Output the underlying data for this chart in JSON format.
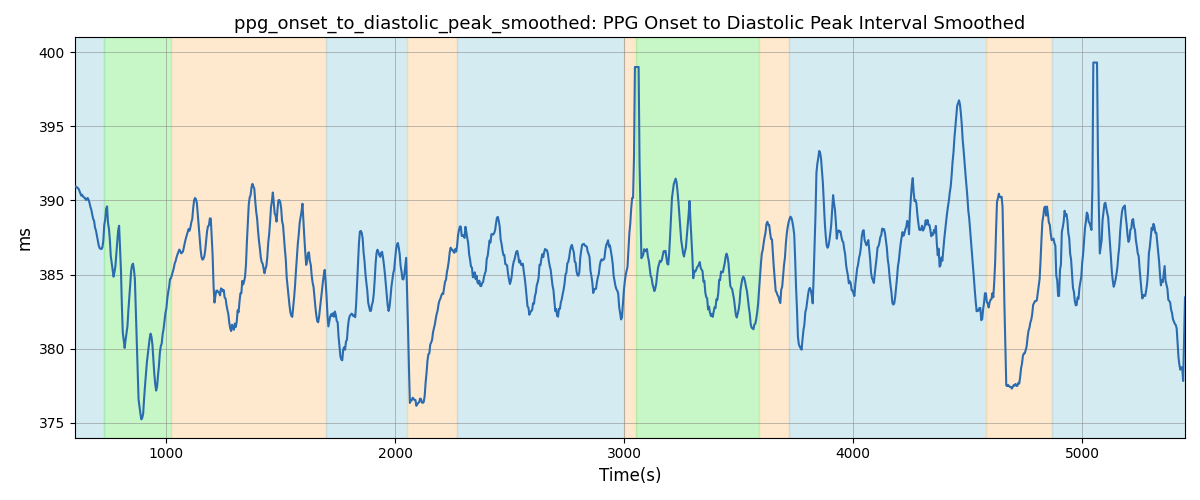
{
  "title": "ppg_onset_to_diastolic_peak_smoothed: PPG Onset to Diastolic Peak Interval Smoothed",
  "xlabel": "Time(s)",
  "ylabel": "ms",
  "xlim": [
    600,
    5450
  ],
  "ylim": [
    374,
    401
  ],
  "yticks": [
    375,
    380,
    385,
    390,
    395,
    400
  ],
  "xticks": [
    1000,
    2000,
    3000,
    4000,
    5000
  ],
  "line_color": "#2b6cb0",
  "line_width": 1.5,
  "bg_color": "white",
  "grid_color": "gray",
  "bands": [
    {
      "start": 600,
      "end": 730,
      "color": "#add8e6",
      "alpha": 0.5
    },
    {
      "start": 730,
      "end": 1020,
      "color": "#90ee90",
      "alpha": 0.5
    },
    {
      "start": 1020,
      "end": 1700,
      "color": "#ffd59e",
      "alpha": 0.5
    },
    {
      "start": 1700,
      "end": 2050,
      "color": "#add8e6",
      "alpha": 0.5
    },
    {
      "start": 2050,
      "end": 2270,
      "color": "#ffd59e",
      "alpha": 0.5
    },
    {
      "start": 2270,
      "end": 3000,
      "color": "#add8e6",
      "alpha": 0.5
    },
    {
      "start": 3000,
      "end": 3050,
      "color": "#ffd59e",
      "alpha": 0.5
    },
    {
      "start": 3050,
      "end": 3590,
      "color": "#90ee90",
      "alpha": 0.5
    },
    {
      "start": 3590,
      "end": 3720,
      "color": "#ffd59e",
      "alpha": 0.5
    },
    {
      "start": 3720,
      "end": 4580,
      "color": "#add8e6",
      "alpha": 0.5
    },
    {
      "start": 4580,
      "end": 4870,
      "color": "#ffd59e",
      "alpha": 0.5
    },
    {
      "start": 4870,
      "end": 5450,
      "color": "#add8e6",
      "alpha": 0.5
    }
  ]
}
